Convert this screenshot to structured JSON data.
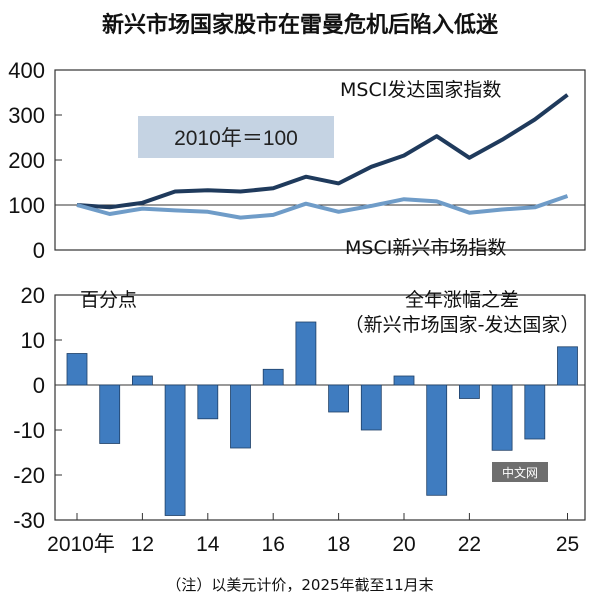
{
  "title": "新兴市场国家股市在雷曼危机后陷入低迷",
  "note": "（注）以美元计价，2025年截至11月末",
  "watermark": "中文网",
  "colors": {
    "developed": "#1f3a5c",
    "emerging": "#6f9cc8",
    "bars": "#3f7cc0",
    "baseline_box": "#c5d3e3"
  },
  "chart_data": [
    {
      "type": "line",
      "x": [
        2010,
        2011,
        2012,
        2013,
        2014,
        2015,
        2016,
        2017,
        2018,
        2019,
        2020,
        2021,
        2022,
        2023,
        2024,
        2025
      ],
      "ylim": [
        0,
        400
      ],
      "yticks": [
        "400",
        "300",
        "200",
        "100",
        "0"
      ],
      "baseline_label": "2010年＝100",
      "series": [
        {
          "name": "MSCI发达国家指数",
          "values": [
            100,
            95,
            105,
            130,
            133,
            130,
            137,
            163,
            148,
            185,
            210,
            253,
            205,
            245,
            290,
            345
          ]
        },
        {
          "name": "MSCI新兴市场指数",
          "values": [
            100,
            80,
            92,
            88,
            85,
            72,
            78,
            103,
            85,
            98,
            113,
            108,
            83,
            90,
            95,
            120
          ]
        }
      ]
    },
    {
      "type": "bar",
      "unit_label": "百分点",
      "annotation_line1": "全年涨幅之差",
      "annotation_line2": "（新兴市场国家-发达国家）",
      "x": [
        2010,
        2011,
        2012,
        2013,
        2014,
        2015,
        2016,
        2017,
        2018,
        2019,
        2020,
        2021,
        2022,
        2023,
        2024,
        2025
      ],
      "values": [
        7,
        -13,
        2,
        -29,
        -7.5,
        -14,
        3.5,
        14,
        -6,
        -10,
        2,
        -24.5,
        -3,
        -14.5,
        -12,
        8.5
      ],
      "ylim": [
        -30,
        20
      ],
      "yticks": [
        "20",
        "10",
        "0",
        "-10",
        "-20",
        "-30"
      ],
      "xtick_labels": [
        "2010年",
        "12",
        "14",
        "16",
        "18",
        "20",
        "22",
        "25"
      ]
    }
  ]
}
